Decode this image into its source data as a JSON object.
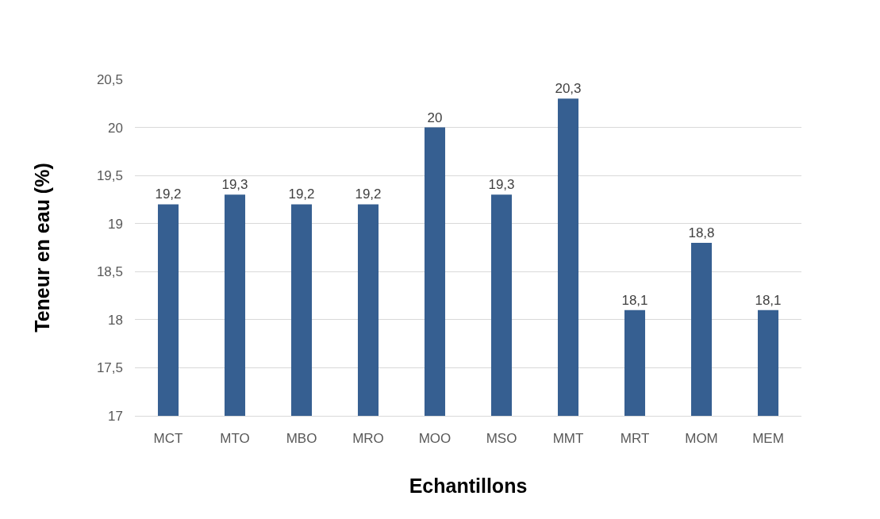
{
  "chart_data": {
    "type": "bar",
    "xlabel": "Echantillons",
    "ylabel": "Teneur en eau (%)",
    "categories": [
      "MCT",
      "MTO",
      "MBO",
      "MRO",
      "MOO",
      "MSO",
      "MMT",
      "MRT",
      "MOM",
      "MEM"
    ],
    "values": [
      19.2,
      19.3,
      19.2,
      19.2,
      20,
      19.3,
      20.3,
      18.1,
      18.8,
      18.1
    ],
    "value_labels": [
      "19,2",
      "19,3",
      "19,2",
      "19,2",
      "20",
      "19,3",
      "20,3",
      "18,1",
      "18,8",
      "18,1"
    ],
    "color": "#365f91",
    "ylim": [
      17,
      20.5
    ],
    "yticks": [
      17,
      {
        "value": 17.5,
        "label": "17,5"
      },
      18,
      {
        "value": 18.5,
        "label": "18,5"
      },
      19,
      {
        "value": 19.5,
        "label": "19,5"
      },
      20,
      {
        "value": 20.5,
        "label": "20,5"
      }
    ],
    "grid": "y"
  }
}
